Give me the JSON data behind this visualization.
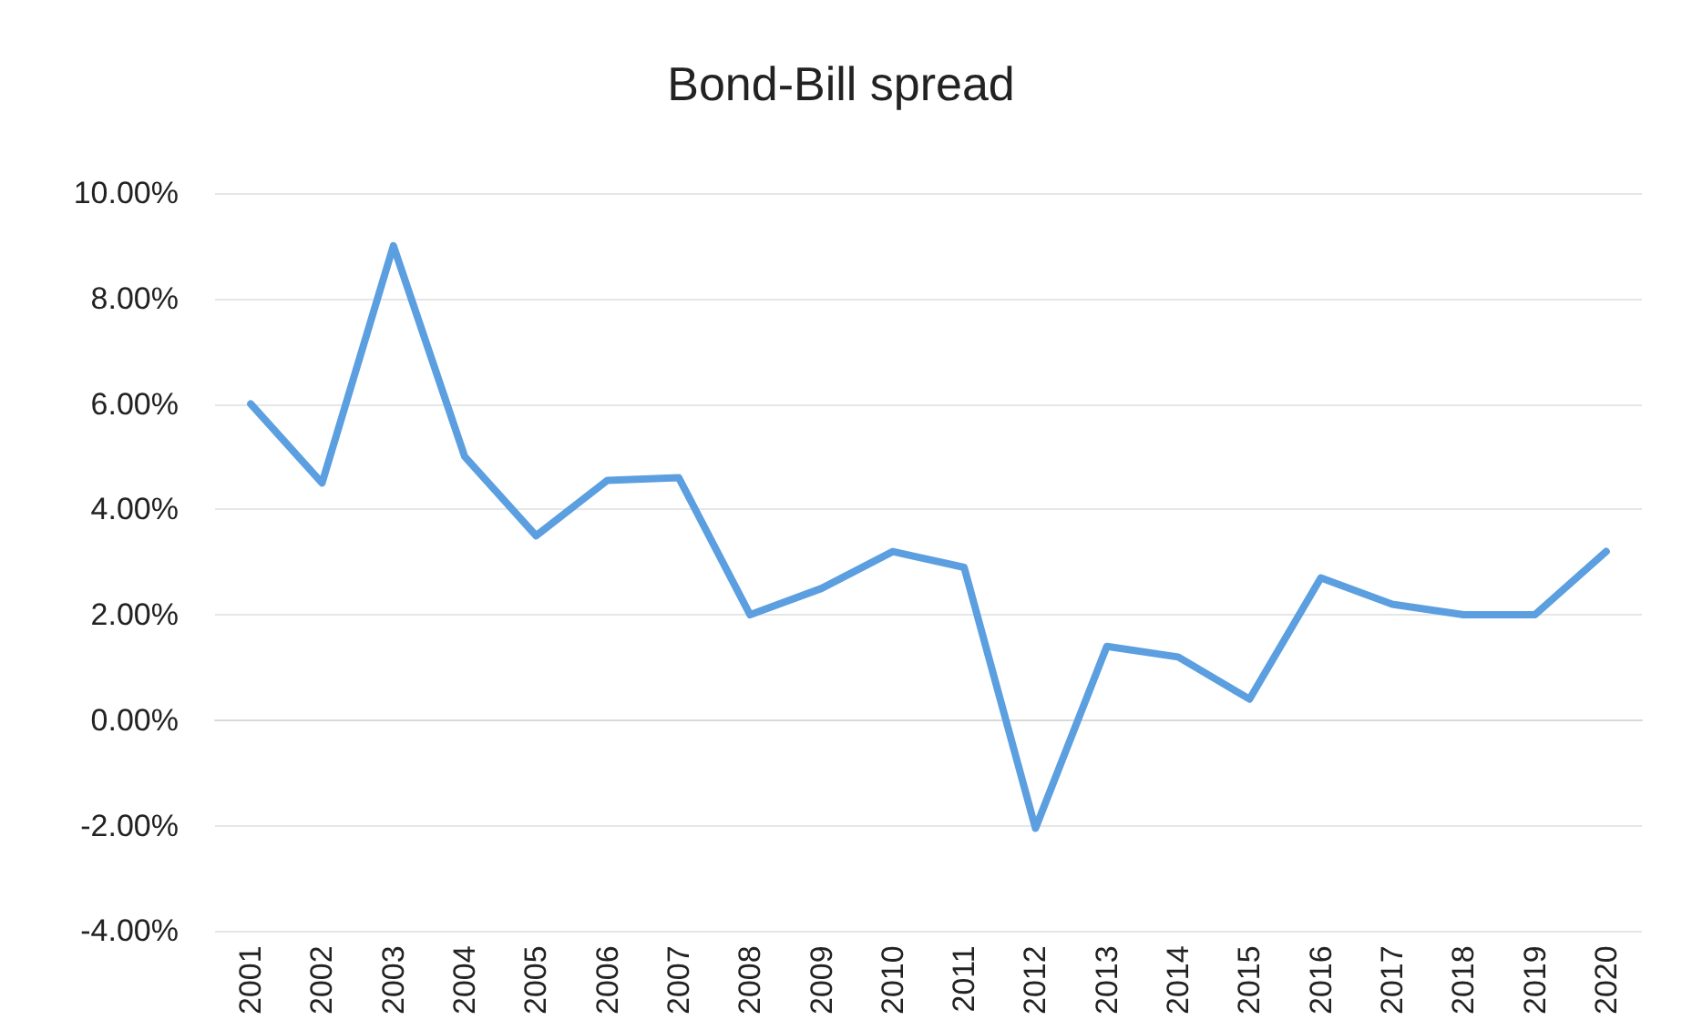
{
  "chart_data": {
    "type": "line",
    "title": "Bond-Bill spread",
    "categories": [
      "2001",
      "2002",
      "2003",
      "2004",
      "2005",
      "2006",
      "2007",
      "2008",
      "2009",
      "2010",
      "2011",
      "2012",
      "2013",
      "2014",
      "2015",
      "2016",
      "2017",
      "2018",
      "2019",
      "2020"
    ],
    "series": [
      {
        "color": "#5b9fe0",
        "values": [
          6.0,
          4.5,
          9.0,
          5.0,
          3.5,
          4.55,
          4.6,
          2.0,
          2.5,
          3.2,
          2.9,
          -2.05,
          1.4,
          1.2,
          0.4,
          2.7,
          2.2,
          2.0,
          2.0,
          3.2
        ]
      }
    ],
    "ylim": [
      -4,
      10
    ],
    "yticks": [
      {
        "value": -4,
        "label": "-4.00%"
      },
      {
        "value": -2,
        "label": "-2.00%"
      },
      {
        "value": 0,
        "label": "0.00%"
      },
      {
        "value": 2,
        "label": "2.00%"
      },
      {
        "value": 4,
        "label": "4.00%"
      },
      {
        "value": 6,
        "label": "6.00%"
      },
      {
        "value": 8,
        "label": "8.00%"
      },
      {
        "value": 10,
        "label": "10.00%"
      }
    ],
    "grid": "y",
    "marker": "none",
    "line_style": "solid"
  }
}
